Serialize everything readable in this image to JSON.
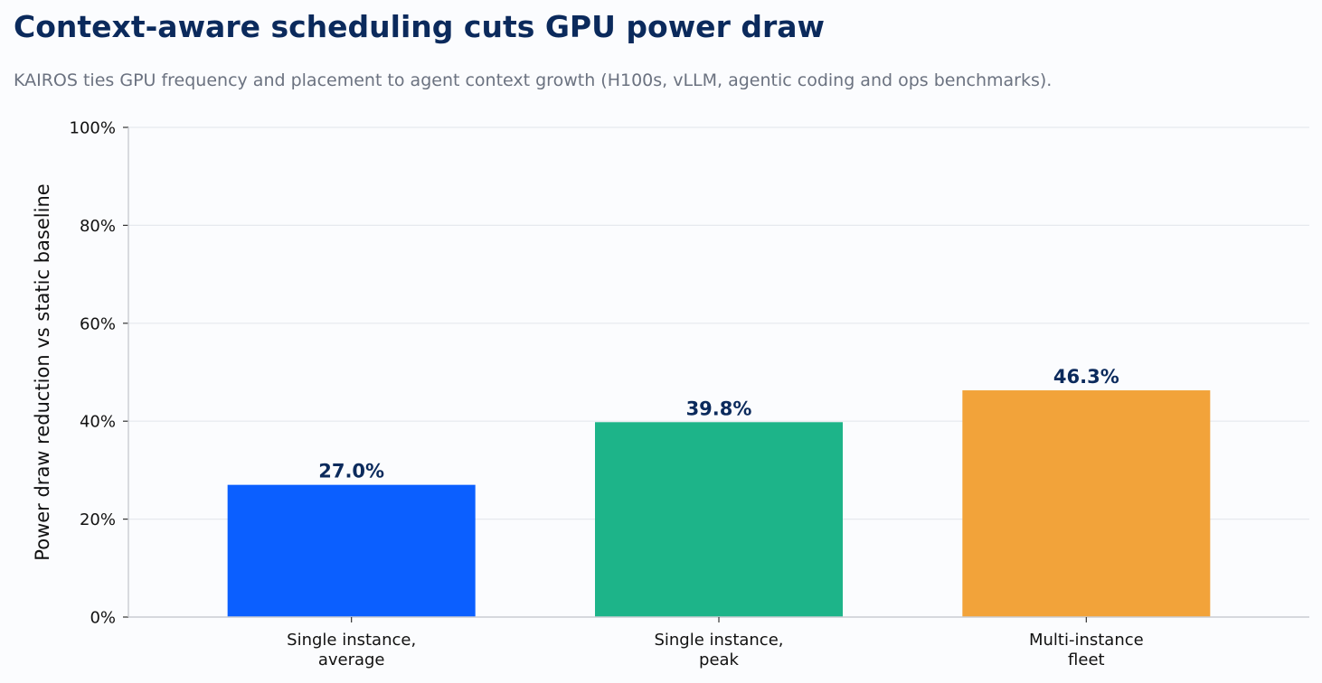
{
  "chart_data": {
    "type": "bar",
    "title": "Context-aware scheduling cuts GPU power draw",
    "subtitle": "KAIROS ties GPU frequency and placement to agent context growth (H100s, vLLM, agentic coding and ops benchmarks).",
    "xlabel": "",
    "ylabel": "Power draw reduction vs static baseline",
    "categories": [
      [
        "Single instance,",
        "average"
      ],
      [
        "Single instance,",
        "peak"
      ],
      [
        "Multi-instance",
        "fleet"
      ]
    ],
    "values": [
      27.0,
      39.8,
      46.3
    ],
    "value_labels": [
      "27.0%",
      "39.8%",
      "46.3%"
    ],
    "bar_colors": [
      "#0b5fff",
      "#1db489",
      "#f2a33a"
    ],
    "ylim": [
      0,
      100
    ],
    "yticks": [
      0,
      20,
      40,
      60,
      80,
      100
    ],
    "ytick_labels": [
      "0%",
      "20%",
      "40%",
      "60%",
      "80%",
      "100%"
    ],
    "grid": true,
    "legend": "none"
  },
  "colors": {
    "title": "#0b2a5c",
    "subtitle": "#6b7280",
    "value_label": "#0b2a5c",
    "grid": "#e6e9ee",
    "axis": "#c9ccd2",
    "background": "#fbfcfe"
  }
}
